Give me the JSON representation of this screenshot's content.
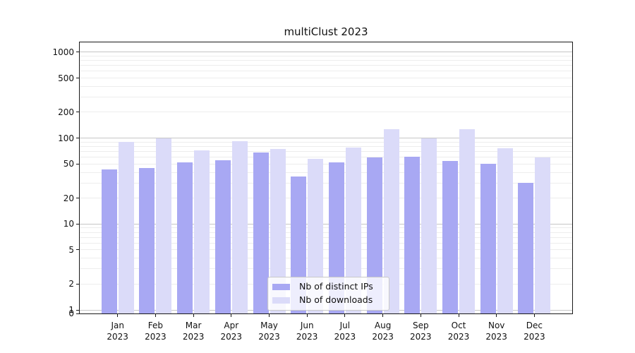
{
  "title": "multiClust 2023",
  "chart_data": {
    "type": "bar",
    "title": "multiClust 2023",
    "categories": [
      "Jan",
      "Feb",
      "Mar",
      "Apr",
      "May",
      "Jun",
      "Jul",
      "Aug",
      "Sep",
      "Oct",
      "Nov",
      "Dec"
    ],
    "category_year": "2023",
    "series": [
      {
        "name": "Nb of distinct IPs",
        "color": "#a8a8f3",
        "values": [
          43,
          45,
          52,
          55,
          68,
          36,
          52,
          60,
          61,
          54,
          50,
          30
        ]
      },
      {
        "name": "Nb of downloads",
        "color": "#dbdbf9",
        "values": [
          90,
          100,
          72,
          92,
          75,
          57,
          78,
          128,
          100,
          126,
          76,
          60
        ]
      }
    ],
    "y_axis": {
      "scale": "log",
      "tick_values": [
        0,
        1,
        2,
        5,
        10,
        20,
        50,
        100,
        200,
        500,
        1000
      ],
      "major_grid_values": [
        1,
        10,
        100,
        1000
      ],
      "minor_grid_bases": [
        1,
        10,
        100
      ],
      "ylim_top": 1300,
      "grid": true
    },
    "xlabel": "",
    "ylabel": "",
    "legend": {
      "position": "lower center",
      "labels": [
        "Nb of distinct IPs",
        "Nb of downloads"
      ]
    },
    "colors": {
      "major_grid": "#c6c6c6",
      "minor_grid": "#ededed",
      "spine": "#1a1a1a",
      "text": "#111111",
      "background": "#ffffff"
    }
  }
}
